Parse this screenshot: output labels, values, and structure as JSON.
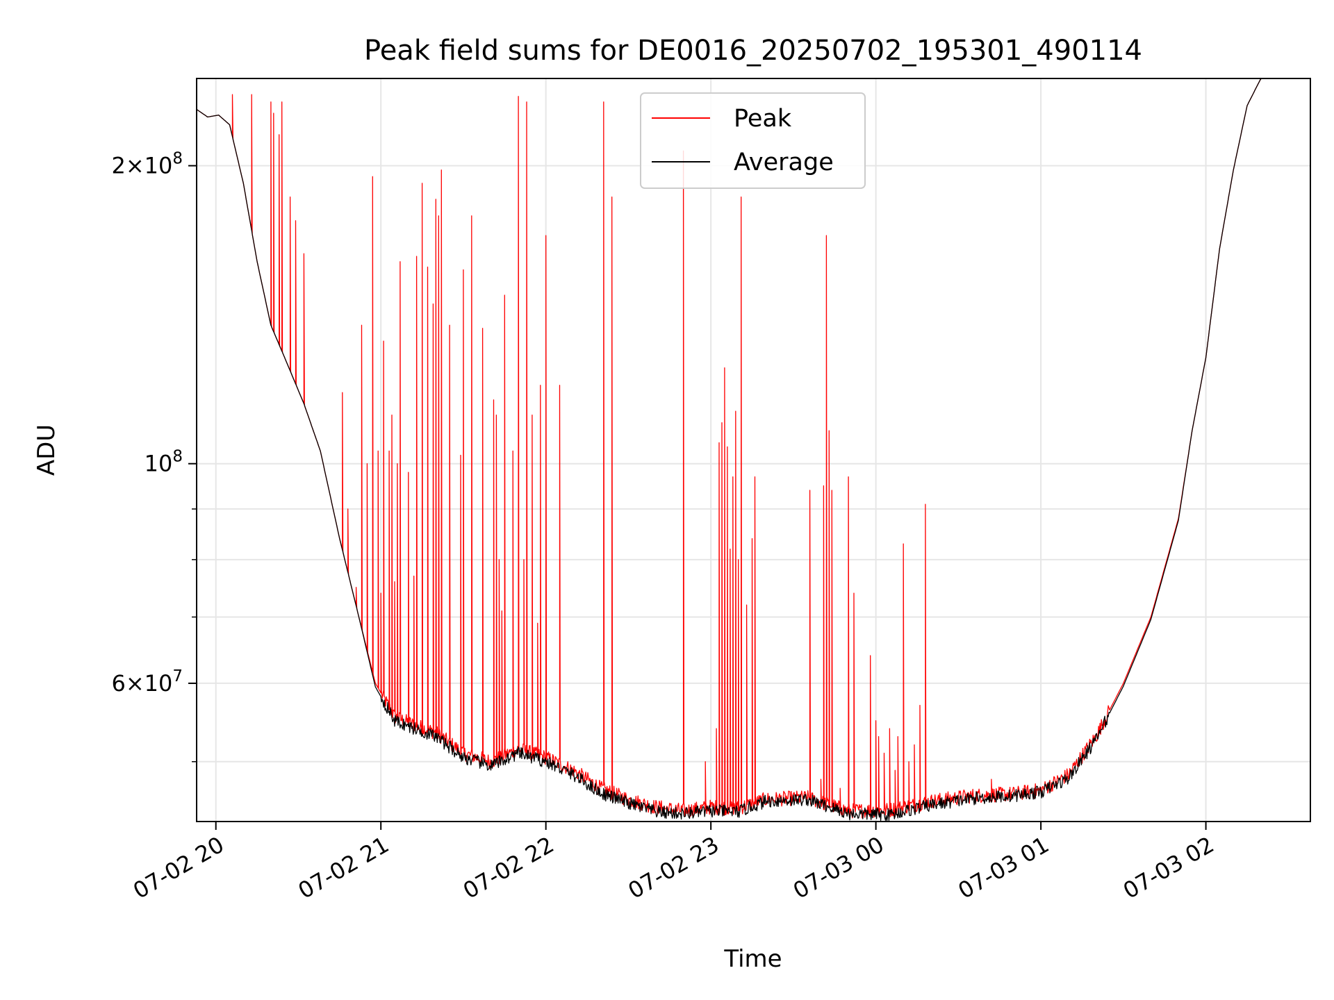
{
  "chart_data": {
    "type": "line",
    "title": "Peak field sums for DE0016_20250702_195301_490114",
    "xlabel": "Time",
    "ylabel": "ADU",
    "yscale": "log",
    "ylim": [
      43500000,
      245000000
    ],
    "xlim": [
      "07-02 19:53",
      "07-03 02:38"
    ],
    "grid": true,
    "legend_position": "top-center",
    "x_ticks": [
      "07-02 20",
      "07-02 21",
      "07-02 22",
      "07-02 23",
      "07-03 00",
      "07-03 01",
      "07-03 02"
    ],
    "y_ticks": [
      {
        "value": 200000000,
        "mantissa": "2",
        "exponent": "8"
      },
      {
        "value": 100000000,
        "mantissa": "",
        "exponent": "8"
      },
      {
        "value": 60000000,
        "mantissa": "6",
        "exponent": "7"
      }
    ],
    "series": [
      {
        "name": "Peak",
        "color": "#ff0000",
        "baseline": [
          [
            "07-02 19:53",
            228000000
          ],
          [
            "07-02 19:57",
            224000000
          ],
          [
            "07-02 20:01",
            225000000
          ],
          [
            "07-02 20:05",
            220000000
          ],
          [
            "07-02 20:10",
            192000000
          ],
          [
            "07-02 20:15",
            160000000
          ],
          [
            "07-02 20:20",
            138000000
          ],
          [
            "07-02 20:25",
            128000000
          ],
          [
            "07-02 20:32",
            115000000
          ],
          [
            "07-02 20:38",
            103000000
          ],
          [
            "07-02 20:45",
            84000000
          ],
          [
            "07-02 20:52",
            70000000
          ],
          [
            "07-02 20:58",
            60000000
          ],
          [
            "07-02 21:05",
            55500000
          ],
          [
            "07-02 21:12",
            54500000
          ],
          [
            "07-02 21:20",
            53500000
          ],
          [
            "07-02 21:30",
            51000000
          ],
          [
            "07-02 21:40",
            50000000
          ],
          [
            "07-02 21:50",
            51500000
          ],
          [
            "07-02 22:00",
            50500000
          ],
          [
            "07-02 22:10",
            49000000
          ],
          [
            "07-02 22:20",
            47000000
          ],
          [
            "07-02 22:30",
            45800000
          ],
          [
            "07-02 22:40",
            45000000
          ],
          [
            "07-02 22:50",
            44600000
          ],
          [
            "07-02 23:00",
            45000000
          ],
          [
            "07-02 23:10",
            44900000
          ],
          [
            "07-02 23:20",
            45800000
          ],
          [
            "07-02 23:35",
            46000000
          ],
          [
            "07-02 23:50",
            44600000
          ],
          [
            "07-03 00:05",
            44700000
          ],
          [
            "07-03 00:20",
            45600000
          ],
          [
            "07-03 00:35",
            46200000
          ],
          [
            "07-03 00:50",
            46400000
          ],
          [
            "07-03 01:00",
            46800000
          ],
          [
            "07-03 01:10",
            48500000
          ],
          [
            "07-03 01:20",
            53000000
          ],
          [
            "07-03 01:30",
            60000000
          ],
          [
            "07-03 01:40",
            70000000
          ],
          [
            "07-03 01:50",
            88000000
          ],
          [
            "07-03 01:55",
            108000000
          ],
          [
            "07-03 02:00",
            128000000
          ],
          [
            "07-03 02:05",
            165000000
          ],
          [
            "07-03 02:10",
            198000000
          ],
          [
            "07-03 02:15",
            230000000
          ],
          [
            "07-03 02:20",
            245000000
          ]
        ],
        "spikes": [
          [
            "07-02 20:06",
            236000000
          ],
          [
            "07-02 20:13",
            236000000
          ],
          [
            "07-02 20:20",
            232000000
          ],
          [
            "07-02 20:21",
            226000000
          ],
          [
            "07-02 20:23",
            215000000
          ],
          [
            "07-02 20:24",
            232000000
          ],
          [
            "07-02 20:27",
            186000000
          ],
          [
            "07-02 20:29",
            176000000
          ],
          [
            "07-02 20:32",
            163000000
          ],
          [
            "07-02 20:46",
            118000000
          ],
          [
            "07-02 20:48",
            90000000
          ],
          [
            "07-02 20:51",
            75000000
          ],
          [
            "07-02 20:53",
            138000000
          ],
          [
            "07-02 20:55",
            100000000
          ],
          [
            "07-02 20:57",
            195000000
          ],
          [
            "07-02 20:59",
            103000000
          ],
          [
            "07-02 21:00",
            74000000
          ],
          [
            "07-02 21:01",
            133000000
          ],
          [
            "07-02 21:03",
            103000000
          ],
          [
            "07-02 21:04",
            112000000
          ],
          [
            "07-02 21:05",
            76000000
          ],
          [
            "07-02 21:06",
            100000000
          ],
          [
            "07-02 21:07",
            160000000
          ],
          [
            "07-02 21:10",
            98000000
          ],
          [
            "07-02 21:12",
            77000000
          ],
          [
            "07-02 21:13",
            162000000
          ],
          [
            "07-02 21:15",
            192000000
          ],
          [
            "07-02 21:17",
            158000000
          ],
          [
            "07-02 21:19",
            145000000
          ],
          [
            "07-02 21:20",
            185000000
          ],
          [
            "07-02 21:21",
            178000000
          ],
          [
            "07-02 21:22",
            198000000
          ],
          [
            "07-02 21:25",
            138000000
          ],
          [
            "07-02 21:29",
            102000000
          ],
          [
            "07-02 21:30",
            157000000
          ],
          [
            "07-02 21:33",
            178000000
          ],
          [
            "07-02 21:37",
            137000000
          ],
          [
            "07-02 21:41",
            116000000
          ],
          [
            "07-02 21:42",
            112000000
          ],
          [
            "07-02 21:43",
            80000000
          ],
          [
            "07-02 21:44",
            71000000
          ],
          [
            "07-02 21:45",
            148000000
          ],
          [
            "07-02 21:48",
            103000000
          ],
          [
            "07-02 21:50",
            235000000
          ],
          [
            "07-02 21:52",
            80000000
          ],
          [
            "07-02 21:53",
            232000000
          ],
          [
            "07-02 21:55",
            112000000
          ],
          [
            "07-02 21:57",
            69000000
          ],
          [
            "07-02 21:58",
            120000000
          ],
          [
            "07-02 22:00",
            170000000
          ],
          [
            "07-02 22:05",
            120000000
          ],
          [
            "07-02 22:21",
            232000000
          ],
          [
            "07-02 22:24",
            186000000
          ],
          [
            "07-02 22:50",
            207000000
          ],
          [
            "07-02 22:58",
            50000000
          ],
          [
            "07-02 23:02",
            54000000
          ],
          [
            "07-02 23:03",
            105000000
          ],
          [
            "07-02 23:04",
            110000000
          ],
          [
            "07-02 23:05",
            125000000
          ],
          [
            "07-02 23:06",
            104000000
          ],
          [
            "07-02 23:07",
            82000000
          ],
          [
            "07-02 23:08",
            97000000
          ],
          [
            "07-02 23:09",
            113000000
          ],
          [
            "07-02 23:10",
            80000000
          ],
          [
            "07-02 23:11",
            186000000
          ],
          [
            "07-02 23:13",
            72000000
          ],
          [
            "07-02 23:15",
            84000000
          ],
          [
            "07-02 23:16",
            97000000
          ],
          [
            "07-02 23:36",
            94000000
          ],
          [
            "07-02 23:40",
            48000000
          ],
          [
            "07-02 23:41",
            95000000
          ],
          [
            "07-02 23:42",
            170000000
          ],
          [
            "07-02 23:43",
            108000000
          ],
          [
            "07-02 23:44",
            94000000
          ],
          [
            "07-02 23:47",
            47000000
          ],
          [
            "07-02 23:50",
            97000000
          ],
          [
            "07-02 23:52",
            74000000
          ],
          [
            "07-02 23:58",
            64000000
          ],
          [
            "07-03 00:00",
            55000000
          ],
          [
            "07-03 00:01",
            53000000
          ],
          [
            "07-03 00:03",
            51000000
          ],
          [
            "07-03 00:05",
            54000000
          ],
          [
            "07-03 00:07",
            49000000
          ],
          [
            "07-03 00:08",
            53000000
          ],
          [
            "07-03 00:10",
            83000000
          ],
          [
            "07-03 00:12",
            50000000
          ],
          [
            "07-03 00:14",
            52000000
          ],
          [
            "07-03 00:16",
            57000000
          ],
          [
            "07-03 00:18",
            91000000
          ],
          [
            "07-03 00:42",
            48000000
          ]
        ]
      },
      {
        "name": "Average",
        "color": "#000000",
        "baseline": [
          [
            "07-02 19:53",
            228000000
          ],
          [
            "07-02 19:57",
            224000000
          ],
          [
            "07-02 20:01",
            225000000
          ],
          [
            "07-02 20:05",
            220000000
          ],
          [
            "07-02 20:10",
            192000000
          ],
          [
            "07-02 20:15",
            160000000
          ],
          [
            "07-02 20:20",
            138000000
          ],
          [
            "07-02 20:25",
            128000000
          ],
          [
            "07-02 20:32",
            115000000
          ],
          [
            "07-02 20:38",
            103000000
          ],
          [
            "07-02 20:45",
            84000000
          ],
          [
            "07-02 20:52",
            70000000
          ],
          [
            "07-02 20:58",
            59500000
          ],
          [
            "07-02 21:05",
            55000000
          ],
          [
            "07-02 21:12",
            54000000
          ],
          [
            "07-02 21:20",
            53000000
          ],
          [
            "07-02 21:30",
            50500000
          ],
          [
            "07-02 21:40",
            49500000
          ],
          [
            "07-02 21:50",
            51000000
          ],
          [
            "07-02 22:00",
            50000000
          ],
          [
            "07-02 22:10",
            48500000
          ],
          [
            "07-02 22:20",
            46500000
          ],
          [
            "07-02 22:30",
            45400000
          ],
          [
            "07-02 22:40",
            44500000
          ],
          [
            "07-02 22:50",
            44300000
          ],
          [
            "07-02 23:00",
            44600000
          ],
          [
            "07-02 23:10",
            44500000
          ],
          [
            "07-02 23:20",
            45600000
          ],
          [
            "07-02 23:35",
            45800000
          ],
          [
            "07-02 23:50",
            44300000
          ],
          [
            "07-03 00:05",
            44200000
          ],
          [
            "07-03 00:20",
            45200000
          ],
          [
            "07-03 00:35",
            45900000
          ],
          [
            "07-03 00:50",
            46200000
          ],
          [
            "07-03 01:00",
            46600000
          ],
          [
            "07-03 01:10",
            48100000
          ],
          [
            "07-03 01:20",
            52600000
          ],
          [
            "07-03 01:30",
            59600000
          ],
          [
            "07-03 01:40",
            69600000
          ],
          [
            "07-03 01:50",
            87600000
          ],
          [
            "07-03 01:55",
            108000000
          ],
          [
            "07-03 02:00",
            128000000
          ],
          [
            "07-03 02:05",
            165000000
          ],
          [
            "07-03 02:10",
            198000000
          ],
          [
            "07-03 02:15",
            230000000
          ],
          [
            "07-03 02:20",
            245000000
          ]
        ]
      }
    ]
  }
}
